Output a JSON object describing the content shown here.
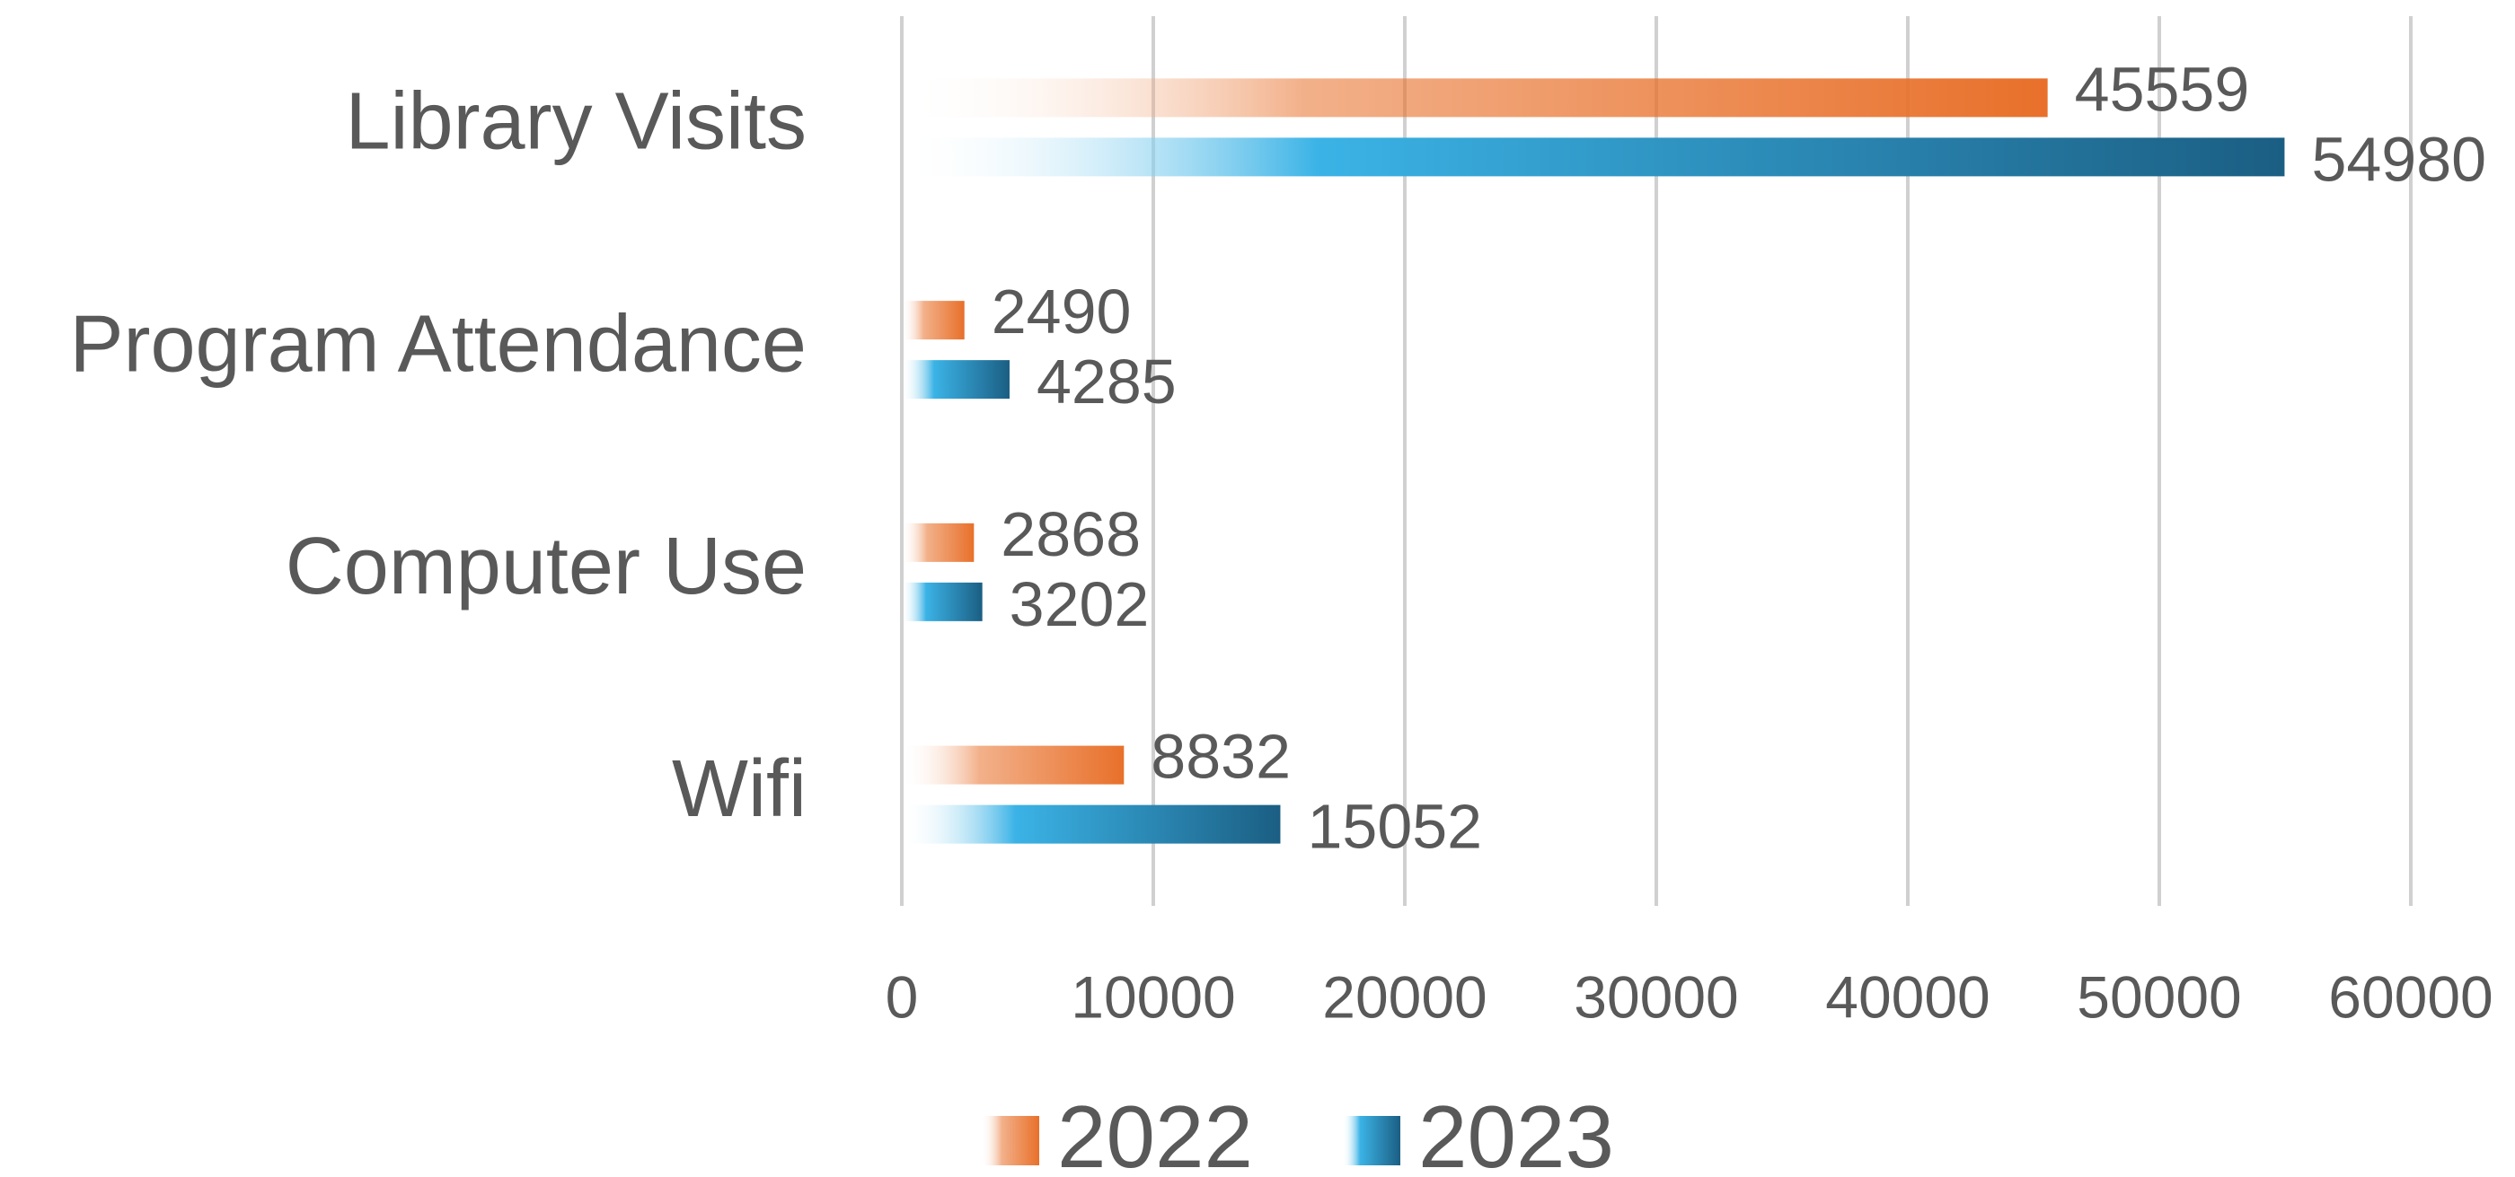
{
  "chart_data": {
    "type": "hbar",
    "categories": [
      "Library Visits",
      "Program Attendance",
      "Computer Use",
      "Wifi"
    ],
    "series": [
      {
        "name": "2022",
        "color": "#e8702a",
        "values": [
          45559,
          2490,
          2868,
          8832
        ]
      },
      {
        "name": "2023",
        "color": "#1b5e83",
        "values": [
          54980,
          4285,
          3202,
          15052
        ]
      }
    ],
    "xlim": [
      0,
      60000
    ],
    "xticks": [
      0,
      10000,
      20000,
      30000,
      40000,
      50000,
      60000
    ],
    "grid": true,
    "legend": "bottom"
  }
}
